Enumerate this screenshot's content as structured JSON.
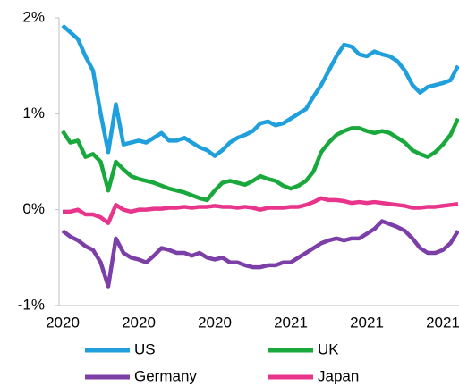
{
  "chart_data": {
    "type": "line",
    "categories": [
      "2020",
      null,
      null,
      null,
      null,
      null,
      null,
      null,
      null,
      null,
      "2020",
      null,
      null,
      null,
      null,
      null,
      null,
      null,
      null,
      null,
      "2020",
      null,
      null,
      null,
      null,
      null,
      null,
      null,
      null,
      null,
      "2021",
      null,
      null,
      null,
      null,
      null,
      null,
      null,
      null,
      null,
      "2021",
      null,
      null,
      null,
      null,
      null,
      null,
      null,
      null,
      null,
      "2021",
      null,
      null
    ],
    "series": [
      {
        "name": "US",
        "color": "#1f9fdc",
        "values": [
          1.92,
          1.85,
          1.78,
          1.6,
          1.45,
          1.0,
          0.6,
          1.1,
          0.68,
          0.7,
          0.72,
          0.7,
          0.75,
          0.8,
          0.72,
          0.72,
          0.75,
          0.7,
          0.65,
          0.62,
          0.56,
          0.62,
          0.7,
          0.75,
          0.78,
          0.82,
          0.9,
          0.92,
          0.88,
          0.9,
          0.95,
          1.0,
          1.05,
          1.18,
          1.3,
          1.45,
          1.6,
          1.72,
          1.7,
          1.62,
          1.6,
          1.65,
          1.62,
          1.6,
          1.55,
          1.45,
          1.3,
          1.22,
          1.28,
          1.3,
          1.32,
          1.35,
          1.5
        ]
      },
      {
        "name": "UK",
        "color": "#19a83b",
        "values": [
          0.82,
          0.7,
          0.72,
          0.55,
          0.58,
          0.5,
          0.2,
          0.5,
          0.42,
          0.35,
          0.32,
          0.3,
          0.28,
          0.25,
          0.22,
          0.2,
          0.18,
          0.15,
          0.12,
          0.1,
          0.2,
          0.28,
          0.3,
          0.28,
          0.26,
          0.3,
          0.35,
          0.32,
          0.3,
          0.25,
          0.22,
          0.25,
          0.3,
          0.4,
          0.6,
          0.7,
          0.78,
          0.82,
          0.85,
          0.85,
          0.82,
          0.8,
          0.82,
          0.8,
          0.75,
          0.7,
          0.62,
          0.58,
          0.55,
          0.6,
          0.68,
          0.78,
          0.95
        ]
      },
      {
        "name": "Germany",
        "color": "#7c3fa8",
        "values": [
          -0.22,
          -0.28,
          -0.32,
          -0.38,
          -0.42,
          -0.55,
          -0.8,
          -0.3,
          -0.45,
          -0.5,
          -0.52,
          -0.55,
          -0.48,
          -0.4,
          -0.42,
          -0.45,
          -0.45,
          -0.48,
          -0.45,
          -0.5,
          -0.52,
          -0.5,
          -0.55,
          -0.55,
          -0.58,
          -0.6,
          -0.6,
          -0.58,
          -0.58,
          -0.55,
          -0.55,
          -0.5,
          -0.45,
          -0.4,
          -0.35,
          -0.32,
          -0.3,
          -0.32,
          -0.3,
          -0.3,
          -0.25,
          -0.2,
          -0.12,
          -0.15,
          -0.18,
          -0.22,
          -0.3,
          -0.4,
          -0.45,
          -0.45,
          -0.42,
          -0.35,
          -0.22
        ]
      },
      {
        "name": "Japan",
        "color": "#e8348b",
        "values": [
          -0.02,
          -0.02,
          0,
          -0.05,
          -0.05,
          -0.08,
          -0.14,
          0.05,
          0.0,
          -0.02,
          0,
          0,
          0.01,
          0.01,
          0.02,
          0.02,
          0.03,
          0.02,
          0.03,
          0.03,
          0.04,
          0.03,
          0.03,
          0.02,
          0.03,
          0.02,
          0.0,
          0.02,
          0.02,
          0.02,
          0.03,
          0.03,
          0.05,
          0.08,
          0.12,
          0.1,
          0.1,
          0.09,
          0.07,
          0.08,
          0.07,
          0.08,
          0.07,
          0.06,
          0.05,
          0.04,
          0.02,
          0.02,
          0.03,
          0.03,
          0.04,
          0.05,
          0.06
        ]
      }
    ],
    "ylim": [
      -1,
      2
    ],
    "yticks": [
      {
        "value": 2,
        "label": "2%"
      },
      {
        "value": 1,
        "label": "1%"
      },
      {
        "value": 0,
        "label": "0%"
      },
      {
        "value": -1,
        "label": "-1%"
      }
    ],
    "grid": false
  }
}
